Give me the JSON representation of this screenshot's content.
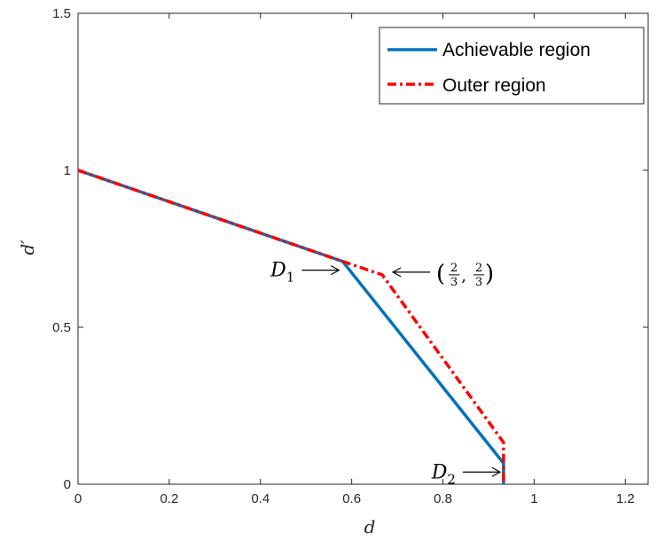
{
  "chart_data": {
    "type": "line",
    "xlabel": "d",
    "ylabel": "d′",
    "xlim": [
      0,
      1.25
    ],
    "ylim": [
      0,
      1.5
    ],
    "xticks": [
      0,
      0.2,
      0.4,
      0.6,
      0.8,
      1,
      1.2
    ],
    "xtick_labels": [
      "0",
      "0.2",
      "0.4",
      "0.6",
      "0.8",
      "1",
      "1.2"
    ],
    "yticks": [
      0,
      0.5,
      1,
      1.5
    ],
    "ytick_labels": [
      "0",
      "0.5",
      "1",
      "1.5"
    ],
    "grid": false,
    "legend_position": "top-right",
    "series": [
      {
        "name": "Achievable region",
        "color": "#0072BD",
        "style": "solid",
        "points": [
          [
            0,
            1.0
          ],
          [
            0.58,
            0.71
          ],
          [
            0.933,
            0.067
          ],
          [
            0.933,
            0.0
          ]
        ]
      },
      {
        "name": "Outer region",
        "color": "#FF0000",
        "style": "dash-dot",
        "points": [
          [
            0,
            1.0
          ],
          [
            0.58,
            0.71
          ],
          [
            0.667,
            0.667
          ],
          [
            0.933,
            0.133
          ],
          [
            0.933,
            0.0
          ]
        ]
      }
    ],
    "annotations": [
      {
        "id": "D1",
        "base": "D",
        "sub": "1",
        "arrow": "right",
        "target": [
          0.58,
          0.71
        ]
      },
      {
        "id": "D2",
        "base": "D",
        "sub": "2",
        "arrow": "right",
        "target": [
          0.933,
          0.067
        ]
      },
      {
        "id": "frac",
        "text": "(2/3, 2/3)",
        "arrow": "left",
        "target": [
          0.667,
          0.667
        ]
      }
    ]
  }
}
